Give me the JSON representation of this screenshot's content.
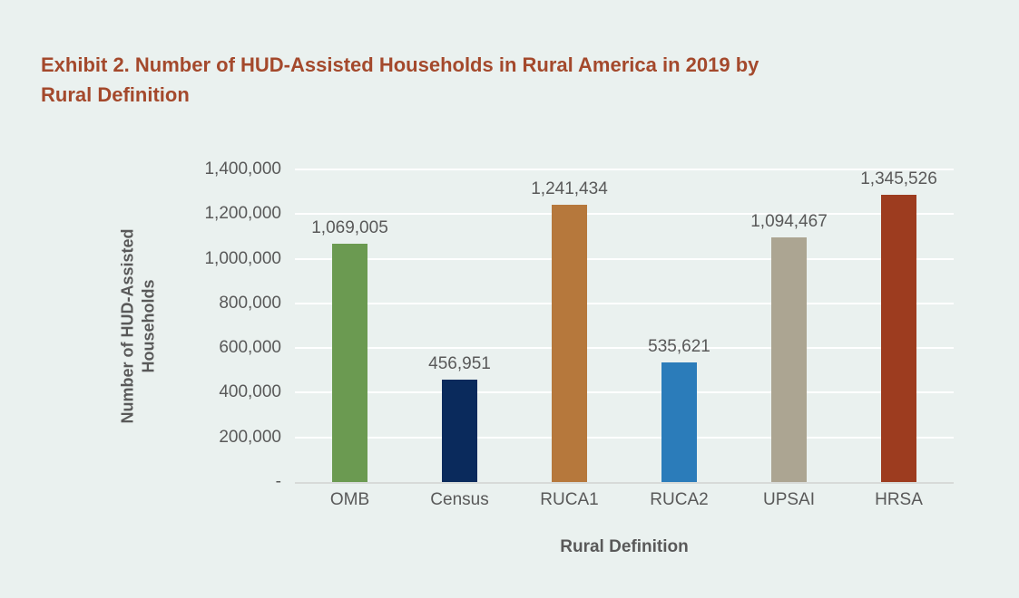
{
  "header": {
    "title_lines": [
      "Exhibit 2. Number of HUD-Assisted Households in Rural America in 2019 by",
      "Rural Definition"
    ]
  },
  "chart_data": {
    "type": "bar",
    "title": "Exhibit 2. Number of HUD-Assisted Households in Rural America in 2019 by Rural Definition",
    "xlabel": "Rural Definition",
    "ylabel": "Number of HUD-Assisted Households",
    "ylabel_lines": [
      "Number of HUD-Assisted",
      "Households"
    ],
    "categories": [
      "OMB",
      "Census",
      "RUCA1",
      "RUCA2",
      "UPSAI",
      "HRSA"
    ],
    "values": [
      1069005,
      456951,
      1241434,
      535621,
      1094467,
      1345526
    ],
    "value_labels": [
      "1,069,005",
      "456,951",
      "1,241,434",
      "535,621",
      "1,094,467",
      "1,345,526"
    ],
    "bar_colors": [
      "#6b9a51",
      "#0a2a5c",
      "#b6783c",
      "#2b7cba",
      "#aca592",
      "#9d3c1f"
    ],
    "ylim": [
      0,
      1400000
    ],
    "ytick_interval": 200000,
    "ytick_labels": [
      "-",
      "200,000",
      "400,000",
      "600,000",
      "800,000",
      "1,000,000",
      "1,200,000",
      "1,400,000"
    ],
    "grid": true,
    "legend": false
  },
  "style": {
    "background": "#eaf1ef",
    "title_color": "#a4492c",
    "text_color": "#595959",
    "gridline_color": "#ffffff",
    "axis_line_color": "#d7dad8"
  }
}
